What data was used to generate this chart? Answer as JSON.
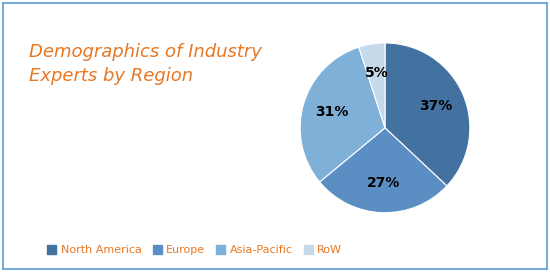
{
  "title": "Demographics of Industry\nExperts by Region",
  "title_color": "#E87722",
  "title_fontsize": 13,
  "slices": [
    37,
    27,
    31,
    5
  ],
  "labels": [
    "North America",
    "Europe",
    "Asia-Pacific",
    "RoW"
  ],
  "colors": [
    "#4472A0",
    "#5B8FC4",
    "#7EB0D8",
    "#C5D9EA"
  ],
  "pct_labels": [
    "37%",
    "27%",
    "31%",
    "5%"
  ],
  "legend_text_color": "#E87722",
  "background_color": "#FFFFFF",
  "border_color": "#5B9BD5",
  "startangle": 90
}
